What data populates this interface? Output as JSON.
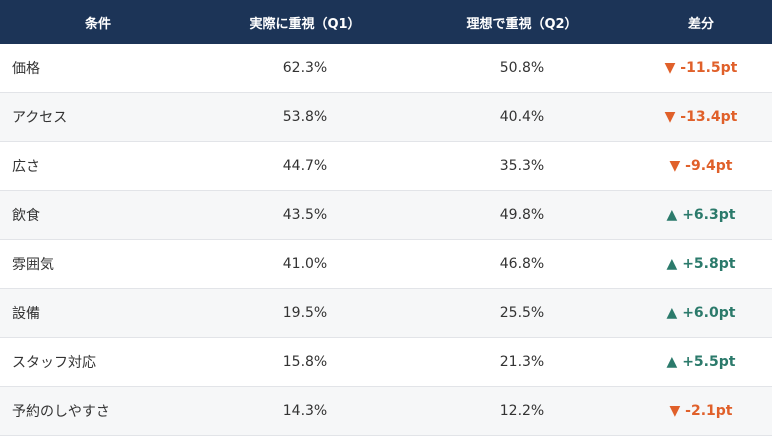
{
  "table": {
    "headers": [
      "条件",
      "実際に重視（Q1）",
      "理想で重視（Q2）",
      "差分"
    ],
    "rows": [
      [
        "価格",
        "62.3%",
        "50.8%",
        "▼ -11.5pt"
      ],
      [
        "アクセス",
        "53.8%",
        "40.4%",
        "▼ -13.4pt"
      ],
      [
        "広さ",
        "44.7%",
        "35.3%",
        "▼ -9.4pt"
      ],
      [
        "飲食",
        "43.5%",
        "49.8%",
        "▲ +6.3pt"
      ],
      [
        "雰囲気",
        "41.0%",
        "46.8%",
        "▲ +5.8pt"
      ],
      [
        "設備",
        "19.5%",
        "25.5%",
        "▲ +6.0pt"
      ],
      [
        "スタッフ対応",
        "15.8%",
        "21.3%",
        "▲ +5.5pt"
      ],
      [
        "予約のしやすさ",
        "14.3%",
        "12.2%",
        "▼ -2.1pt"
      ]
    ],
    "diff_colors": [
      "#e0602a",
      "#e0602a",
      "#e0602a",
      "#2b7a6b",
      "#2b7a6b",
      "#2b7a6b",
      "#2b7a6b",
      "#e0602a"
    ]
  }
}
